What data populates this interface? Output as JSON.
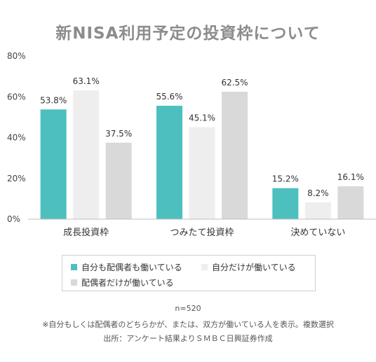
{
  "chart_data": {
    "type": "bar",
    "title": "新NISA利用予定の投資枠について",
    "categories": [
      "成長投資枠",
      "つみたて投資枠",
      "決めていない"
    ],
    "series": [
      {
        "name": "自分も配偶者も働いている",
        "color": "#4dbfbf",
        "values": [
          53.8,
          55.6,
          15.2
        ],
        "labels": [
          "53.8%",
          "55.6%",
          "15.2%"
        ]
      },
      {
        "name": "自分だけが働いている",
        "color": "#eeeeee",
        "values": [
          63.1,
          45.1,
          8.2
        ],
        "labels": [
          "63.1%",
          "45.1%",
          "8.2%"
        ]
      },
      {
        "name": "配偶者だけが働いている",
        "color": "#d9d9d9",
        "values": [
          37.5,
          62.5,
          16.1
        ],
        "labels": [
          "37.5%",
          "62.5%",
          "16.1%"
        ]
      }
    ],
    "yticks": [
      0,
      20,
      40,
      60,
      80
    ],
    "ytick_labels": [
      "0%",
      "20%",
      "40%",
      "60%",
      "80%"
    ],
    "ylim": [
      0,
      80
    ],
    "grid": false,
    "legend_position": "bottom"
  },
  "notes": {
    "sample": "n=520",
    "footnote": "※自分もしくは配偶者のどちらかが、または、双方が働いている人を表示。複数選択",
    "source": "出所：アンケート結果よりＳＭＢＣ日興証券作成"
  }
}
